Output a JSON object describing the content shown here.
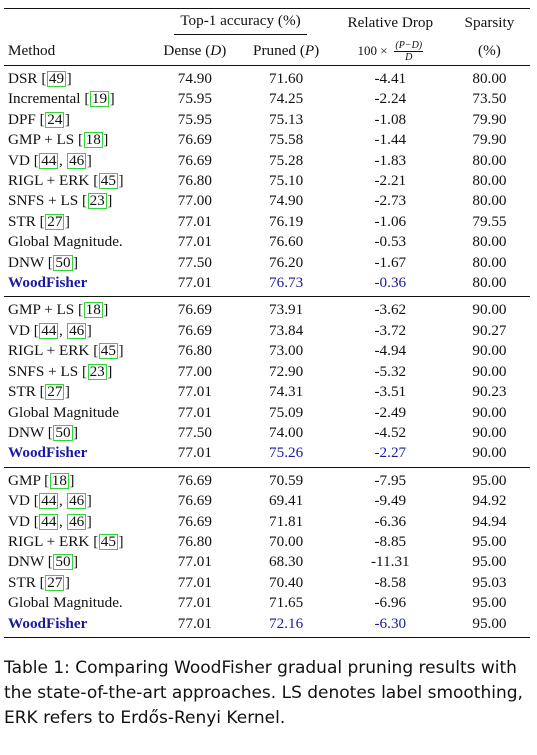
{
  "header": {
    "group_top1": "Top-1 accuracy (%)",
    "relative_drop": "Relative Drop",
    "sparsity": "Sparsity",
    "method": "Method",
    "dense_label": "Dense",
    "dense_symbol": "D",
    "pruned_label": "Pruned",
    "pruned_symbol": "P",
    "drop_prefix": "100 ×",
    "drop_num": "(P−D)",
    "drop_den": "D",
    "sparsity_unit": "(%)"
  },
  "sections": [
    {
      "rows": [
        {
          "name": "DSR",
          "cites": [
            "49"
          ],
          "dense": "74.90",
          "pruned": "71.60",
          "drop": "-4.41",
          "sparsity": "80.00"
        },
        {
          "name": "Incremental",
          "cites": [
            "19"
          ],
          "dense": "75.95",
          "pruned": "74.25",
          "drop": "-2.24",
          "sparsity": "73.50"
        },
        {
          "name": "DPF",
          "cites": [
            "24"
          ],
          "dense": "75.95",
          "pruned": "75.13",
          "drop": "-1.08",
          "sparsity": "79.90"
        },
        {
          "name": "GMP + LS",
          "cites": [
            "18"
          ],
          "dense": "76.69",
          "pruned": "75.58",
          "drop": "-1.44",
          "sparsity": "79.90"
        },
        {
          "name": "VD",
          "cites": [
            "44",
            "46"
          ],
          "dense": "76.69",
          "pruned": "75.28",
          "drop": "-1.83",
          "sparsity": "80.00"
        },
        {
          "name": "RIGL + ERK",
          "cites": [
            "45"
          ],
          "dense": "76.80",
          "pruned": "75.10",
          "drop": "-2.21",
          "sparsity": "80.00"
        },
        {
          "name": "SNFS + LS",
          "cites": [
            "23"
          ],
          "dense": "77.00",
          "pruned": "74.90",
          "drop": "-2.73",
          "sparsity": "80.00"
        },
        {
          "name": "STR",
          "cites": [
            "27"
          ],
          "dense": "77.01",
          "pruned": "76.19",
          "drop": "-1.06",
          "sparsity": "79.55"
        },
        {
          "name": "Global Magnitude.",
          "cites": [],
          "dense": "77.01",
          "pruned": "76.60",
          "drop": "-0.53",
          "sparsity": "80.00"
        },
        {
          "name": "DNW",
          "cites": [
            "50"
          ],
          "dense": "77.50",
          "pruned": "76.20",
          "drop": "-1.67",
          "sparsity": "80.00"
        },
        {
          "name": "WoodFisher",
          "cites": [],
          "dense": "77.01",
          "pruned": "76.73",
          "drop": "-0.36",
          "sparsity": "80.00",
          "highlight": true
        }
      ]
    },
    {
      "rows": [
        {
          "name": "GMP + LS",
          "cites": [
            "18"
          ],
          "dense": "76.69",
          "pruned": "73.91",
          "drop": "-3.62",
          "sparsity": "90.00"
        },
        {
          "name": "VD",
          "cites": [
            "44",
            "46"
          ],
          "dense": "76.69",
          "pruned": "73.84",
          "drop": "-3.72",
          "sparsity": "90.27"
        },
        {
          "name": "RIGL + ERK",
          "cites": [
            "45"
          ],
          "dense": "76.80",
          "pruned": "73.00",
          "drop": "-4.94",
          "sparsity": "90.00"
        },
        {
          "name": "SNFS + LS",
          "cites": [
            "23"
          ],
          "dense": "77.00",
          "pruned": "72.90",
          "drop": "-5.32",
          "sparsity": "90.00"
        },
        {
          "name": "STR",
          "cites": [
            "27"
          ],
          "dense": "77.01",
          "pruned": "74.31",
          "drop": "-3.51",
          "sparsity": "90.23"
        },
        {
          "name": "Global Magnitude",
          "cites": [],
          "dense": "77.01",
          "pruned": "75.09",
          "drop": "-2.49",
          "sparsity": "90.00"
        },
        {
          "name": "DNW",
          "cites": [
            "50"
          ],
          "dense": "77.50",
          "pruned": "74.00",
          "drop": "-4.52",
          "sparsity": "90.00"
        },
        {
          "name": "WoodFisher",
          "cites": [],
          "dense": "77.01",
          "pruned": "75.26",
          "drop": "-2.27",
          "sparsity": "90.00",
          "highlight": true
        }
      ]
    },
    {
      "rows": [
        {
          "name": "GMP",
          "cites": [
            "18"
          ],
          "dense": "76.69",
          "pruned": "70.59",
          "drop": "-7.95",
          "sparsity": "95.00"
        },
        {
          "name": "VD",
          "cites": [
            "44",
            "46"
          ],
          "dense": "76.69",
          "pruned": "69.41",
          "drop": "-9.49",
          "sparsity": "94.92"
        },
        {
          "name": "VD",
          "cites": [
            "44",
            "46"
          ],
          "dense": "76.69",
          "pruned": "71.81",
          "drop": "-6.36",
          "sparsity": "94.94"
        },
        {
          "name": "RIGL + ERK",
          "cites": [
            "45"
          ],
          "dense": "76.80",
          "pruned": "70.00",
          "drop": "-8.85",
          "sparsity": "95.00"
        },
        {
          "name": "DNW",
          "cites": [
            "50"
          ],
          "dense": "77.01",
          "pruned": "68.30",
          "drop": "-11.31",
          "sparsity": "95.00"
        },
        {
          "name": "STR",
          "cites": [
            "27"
          ],
          "dense": "77.01",
          "pruned": "70.40",
          "drop": "-8.58",
          "sparsity": "95.03"
        },
        {
          "name": "Global Magnitude.",
          "cites": [],
          "dense": "77.01",
          "pruned": "71.65",
          "drop": "-6.96",
          "sparsity": "95.00"
        },
        {
          "name": "WoodFisher",
          "cites": [],
          "dense": "77.01",
          "pruned": "72.16",
          "drop": "-6.30",
          "sparsity": "95.00",
          "highlight": true
        }
      ]
    }
  ],
  "caption": "Table 1: Comparing WoodFisher gradual pruning results with the state-of-the-art approaches. LS denotes label smoothing, ERK refers to Erdős-Renyi Kernel.",
  "colors": {
    "highlight_text": "#1a1aa0",
    "citation_box": "#33d33a"
  }
}
